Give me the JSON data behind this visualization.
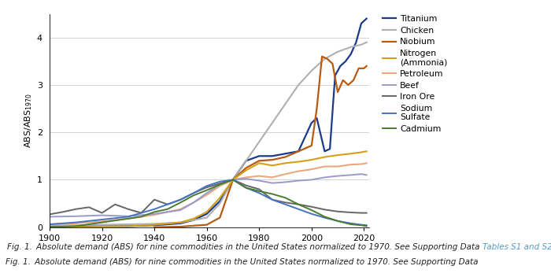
{
  "xlim": [
    1900,
    2022
  ],
  "ylim": [
    0,
    4.5
  ],
  "yticks": [
    0,
    1,
    2,
    3,
    4
  ],
  "xticks": [
    1900,
    1920,
    1940,
    1960,
    1980,
    2000,
    2020
  ],
  "series": {
    "Titanium": {
      "color": "#1a3a8c",
      "linewidth": 1.6,
      "data": {
        "years": [
          1900,
          1910,
          1920,
          1930,
          1940,
          1950,
          1955,
          1960,
          1965,
          1970,
          1975,
          1980,
          1985,
          1990,
          1995,
          2000,
          2002,
          2005,
          2007,
          2009,
          2011,
          2013,
          2015,
          2017,
          2019,
          2021
        ],
        "values": [
          0.02,
          0.02,
          0.02,
          0.02,
          0.04,
          0.08,
          0.15,
          0.28,
          0.55,
          1.0,
          1.4,
          1.5,
          1.5,
          1.55,
          1.6,
          2.2,
          2.3,
          1.6,
          1.65,
          3.2,
          3.4,
          3.5,
          3.65,
          3.9,
          4.3,
          4.4
        ]
      }
    },
    "Chicken": {
      "color": "#b0b0b0",
      "linewidth": 1.5,
      "data": {
        "years": [
          1900,
          1910,
          1920,
          1930,
          1940,
          1950,
          1955,
          1960,
          1965,
          1970,
          1975,
          1980,
          1985,
          1990,
          1995,
          2000,
          2005,
          2010,
          2015,
          2019,
          2021
        ],
        "values": [
          0.04,
          0.04,
          0.05,
          0.06,
          0.07,
          0.1,
          0.15,
          0.2,
          0.5,
          1.0,
          1.4,
          1.8,
          2.2,
          2.6,
          3.0,
          3.3,
          3.55,
          3.7,
          3.8,
          3.85,
          3.9
        ]
      }
    },
    "Niobium": {
      "color": "#b85a10",
      "linewidth": 1.6,
      "data": {
        "years": [
          1940,
          1950,
          1960,
          1965,
          1970,
          1975,
          1980,
          1985,
          1990,
          1995,
          2000,
          2002,
          2004,
          2006,
          2008,
          2010,
          2012,
          2014,
          2016,
          2018,
          2020,
          2021
        ],
        "values": [
          0.0,
          0.01,
          0.05,
          0.2,
          1.0,
          1.25,
          1.4,
          1.42,
          1.48,
          1.6,
          1.72,
          2.5,
          3.6,
          3.55,
          3.45,
          2.85,
          3.1,
          3.0,
          3.1,
          3.35,
          3.35,
          3.4
        ]
      }
    },
    "Nitrogen (Ammonia)": {
      "color": "#d4a017",
      "linewidth": 1.5,
      "data": {
        "years": [
          1900,
          1910,
          1920,
          1930,
          1940,
          1950,
          1955,
          1960,
          1965,
          1970,
          1975,
          1980,
          1985,
          1990,
          1995,
          2000,
          2005,
          2010,
          2015,
          2019,
          2021
        ],
        "values": [
          0.0,
          0.0,
          0.01,
          0.02,
          0.05,
          0.1,
          0.18,
          0.32,
          0.62,
          1.0,
          1.2,
          1.35,
          1.3,
          1.35,
          1.38,
          1.42,
          1.48,
          1.52,
          1.55,
          1.58,
          1.6
        ]
      }
    },
    "Petroleum": {
      "color": "#e8a882",
      "linewidth": 1.5,
      "data": {
        "years": [
          1900,
          1910,
          1920,
          1930,
          1940,
          1950,
          1955,
          1960,
          1965,
          1970,
          1975,
          1980,
          1985,
          1990,
          1995,
          2000,
          2005,
          2010,
          2015,
          2019,
          2021
        ],
        "values": [
          0.06,
          0.08,
          0.12,
          0.18,
          0.26,
          0.38,
          0.52,
          0.68,
          0.87,
          1.0,
          1.05,
          1.08,
          1.05,
          1.12,
          1.18,
          1.22,
          1.28,
          1.28,
          1.32,
          1.33,
          1.35
        ]
      }
    },
    "Beef": {
      "color": "#9999cc",
      "linewidth": 1.4,
      "data": {
        "years": [
          1900,
          1910,
          1920,
          1930,
          1940,
          1950,
          1955,
          1960,
          1965,
          1970,
          1975,
          1980,
          1985,
          1990,
          1995,
          2000,
          2005,
          2010,
          2015,
          2019,
          2021
        ],
        "values": [
          0.22,
          0.23,
          0.25,
          0.23,
          0.28,
          0.36,
          0.52,
          0.72,
          0.9,
          1.0,
          1.02,
          0.98,
          0.93,
          0.95,
          0.98,
          1.0,
          1.05,
          1.08,
          1.1,
          1.12,
          1.1
        ]
      }
    },
    "Iron Ore": {
      "color": "#666666",
      "linewidth": 1.4,
      "data": {
        "years": [
          1900,
          1905,
          1910,
          1915,
          1920,
          1925,
          1930,
          1935,
          1940,
          1945,
          1950,
          1955,
          1960,
          1965,
          1970,
          1975,
          1980,
          1985,
          1990,
          1995,
          2000,
          2005,
          2010,
          2015,
          2019,
          2021
        ],
        "values": [
          0.27,
          0.32,
          0.38,
          0.42,
          0.3,
          0.48,
          0.38,
          0.3,
          0.58,
          0.48,
          0.58,
          0.72,
          0.84,
          0.92,
          1.0,
          0.88,
          0.8,
          0.58,
          0.52,
          0.48,
          0.43,
          0.37,
          0.33,
          0.31,
          0.3,
          0.3
        ]
      }
    },
    "Sodium Sulfate": {
      "color": "#4472c4",
      "linewidth": 1.4,
      "data": {
        "years": [
          1900,
          1910,
          1920,
          1930,
          1940,
          1950,
          1955,
          1960,
          1965,
          1970,
          1975,
          1980,
          1985,
          1990,
          1995,
          2000,
          2005,
          2010,
          2015,
          2019,
          2021
        ],
        "values": [
          0.06,
          0.1,
          0.16,
          0.22,
          0.38,
          0.58,
          0.72,
          0.87,
          0.96,
          1.0,
          0.83,
          0.72,
          0.58,
          0.48,
          0.38,
          0.28,
          0.2,
          0.13,
          0.08,
          0.05,
          0.04
        ]
      }
    },
    "Cadmium": {
      "color": "#4a7c2f",
      "linewidth": 1.4,
      "data": {
        "years": [
          1900,
          1910,
          1920,
          1925,
          1930,
          1935,
          1940,
          1945,
          1950,
          1955,
          1960,
          1965,
          1970,
          1975,
          1980,
          1985,
          1990,
          1995,
          2000,
          2005,
          2010,
          2015,
          2019,
          2021
        ],
        "values": [
          0.0,
          0.02,
          0.1,
          0.14,
          0.18,
          0.22,
          0.32,
          0.38,
          0.52,
          0.67,
          0.78,
          0.9,
          1.0,
          0.83,
          0.76,
          0.7,
          0.62,
          0.48,
          0.36,
          0.22,
          0.13,
          0.06,
          0.04,
          0.02
        ]
      }
    }
  },
  "legend_order": [
    "Titanium",
    "Chicken",
    "Niobium",
    "Nitrogen\n(Ammonia)",
    "Petroleum",
    "Beef",
    "Iron Ore",
    "Sodium\nSulfate",
    "Cadmium"
  ],
  "legend_keys": [
    "Titanium",
    "Chicken",
    "Niobium",
    "Nitrogen (Ammonia)",
    "Petroleum",
    "Beef",
    "Iron Ore",
    "Sodium Sulfate",
    "Cadmium"
  ],
  "caption_black": "Fig. 1. Absolute demand (ABS) for nine commodities in the United States normalized to 1970. See Supporting Data ",
  "caption_blue": "Tables S1 and S2.",
  "caption_fontsize": 7.5
}
